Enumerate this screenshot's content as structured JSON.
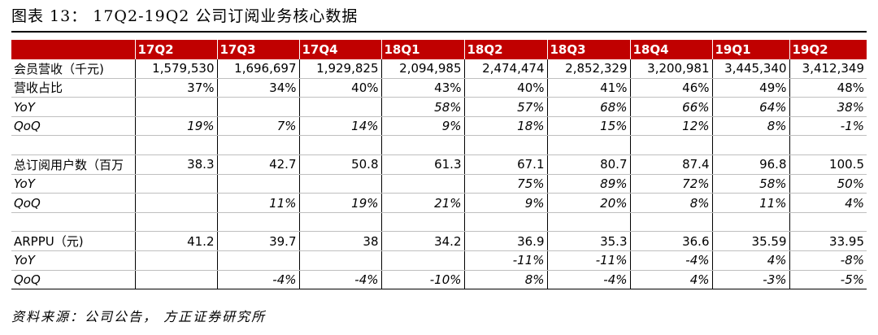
{
  "title": "图表 13： 17Q2-19Q2 公司订阅业务核心数据",
  "source": "资料来源：公司公告， 方正证券研究所",
  "colors": {
    "header_bg": "#c00000",
    "header_text": "#ffffff"
  },
  "table": {
    "columns": [
      "17Q2",
      "17Q3",
      "17Q4",
      "18Q1",
      "18Q2",
      "18Q3",
      "18Q4",
      "19Q1",
      "19Q2"
    ],
    "rows": [
      {
        "label": "会员营收（千元)",
        "italic": false,
        "values": [
          "1,579,530",
          "1,696,697",
          "1,929,825",
          "2,094,985",
          "2,474,474",
          "2,852,329",
          "3,200,981",
          "3,445,340",
          "3,412,349"
        ]
      },
      {
        "label": "营收占比",
        "italic": false,
        "values": [
          "37%",
          "34%",
          "40%",
          "43%",
          "40%",
          "41%",
          "46%",
          "49%",
          "48%"
        ]
      },
      {
        "label": "YoY",
        "italic": true,
        "values": [
          "",
          "",
          "",
          "58%",
          "57%",
          "68%",
          "66%",
          "64%",
          "38%"
        ]
      },
      {
        "label": "QoQ",
        "italic": true,
        "values": [
          "19%",
          "7%",
          "14%",
          "9%",
          "18%",
          "15%",
          "12%",
          "8%",
          "-1%"
        ]
      },
      {
        "label": "",
        "italic": false,
        "blank": true,
        "values": [
          "",
          "",
          "",
          "",
          "",
          "",
          "",
          "",
          ""
        ]
      },
      {
        "label": "总订阅用户数（百万",
        "italic": false,
        "values": [
          "38.3",
          "42.7",
          "50.8",
          "61.3",
          "67.1",
          "80.7",
          "87.4",
          "96.8",
          "100.5"
        ]
      },
      {
        "label": "YoY",
        "italic": true,
        "values": [
          "",
          "",
          "",
          "",
          "75%",
          "89%",
          "72%",
          "58%",
          "50%"
        ]
      },
      {
        "label": "QoQ",
        "italic": true,
        "values": [
          "",
          "11%",
          "19%",
          "21%",
          "9%",
          "20%",
          "8%",
          "11%",
          "4%"
        ]
      },
      {
        "label": "",
        "italic": false,
        "blank": true,
        "values": [
          "",
          "",
          "",
          "",
          "",
          "",
          "",
          "",
          ""
        ]
      },
      {
        "label": "ARPPU（元)",
        "italic": false,
        "values": [
          "41.2",
          "39.7",
          "38",
          "34.2",
          "36.9",
          "35.3",
          "36.6",
          "35.59",
          "33.95"
        ]
      },
      {
        "label": "YoY",
        "italic": true,
        "values": [
          "",
          "",
          "",
          "",
          "-11%",
          "-11%",
          "-4%",
          "4%",
          "-8%"
        ]
      },
      {
        "label": "QoQ",
        "italic": true,
        "values": [
          "",
          "-4%",
          "-4%",
          "-10%",
          "8%",
          "-4%",
          "4%",
          "-3%",
          "-5%"
        ]
      }
    ]
  }
}
